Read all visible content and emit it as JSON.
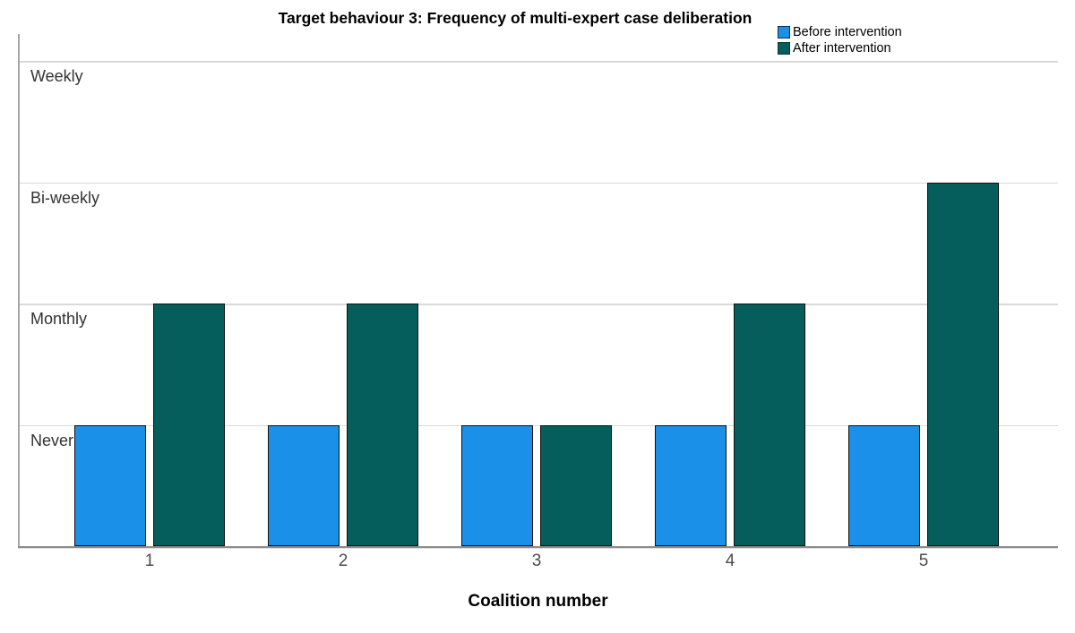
{
  "chart_data": {
    "type": "bar",
    "title": "Target behaviour 3: Frequency of multi-expert case deliberation",
    "xlabel": "Coalition number",
    "categories": [
      "1",
      "2",
      "3",
      "4",
      "5"
    ],
    "y_categories": [
      "Never",
      "Monthly",
      "Bi-weekly",
      "Weekly"
    ],
    "series": [
      {
        "name": "Before intervention",
        "color": "#1b90e8",
        "values": [
          1,
          1,
          1,
          1,
          1
        ],
        "value_labels": [
          "Never",
          "Never",
          "Never",
          "Never",
          "Never"
        ]
      },
      {
        "name": "After intervention",
        "color": "#055e5c",
        "values": [
          2,
          2,
          1,
          2,
          3
        ],
        "value_labels": [
          "Monthly",
          "Monthly",
          "Never",
          "Monthly",
          "Bi-weekly"
        ]
      }
    ],
    "ylim": [
      0,
      4.2
    ],
    "grid": true,
    "legend_position": "top-right",
    "colors": {
      "before_bar": "#1b90e8",
      "after_bar": "#055e5c",
      "bar_border": "#101010",
      "gridline": "#d9d9d9",
      "axis_line": "#9b9b9b",
      "title_text": "#000000",
      "tick_text": "#4d4d4d",
      "category_text": "#333333"
    }
  }
}
